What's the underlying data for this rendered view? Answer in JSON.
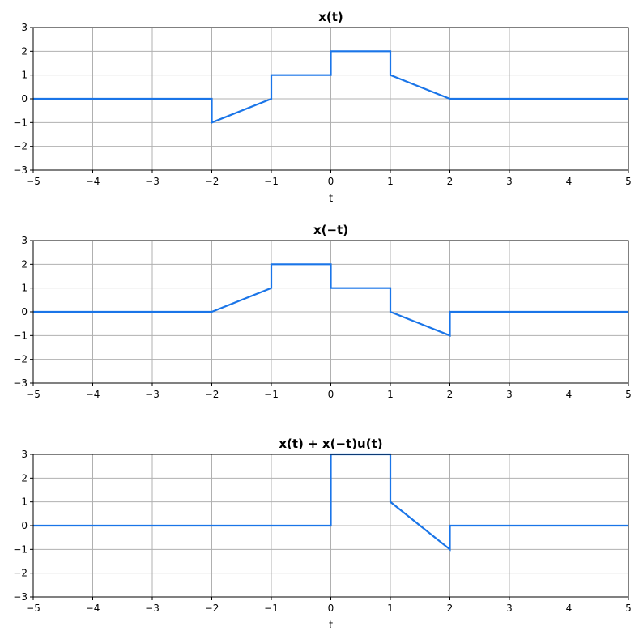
{
  "chart_data": [
    {
      "type": "line",
      "title": "x(t)",
      "xlabel": "t",
      "ylabel": "",
      "xlim": [
        -5,
        5
      ],
      "ylim": [
        -3,
        3
      ],
      "xticks": [
        -5,
        -4,
        -3,
        -2,
        -1,
        0,
        1,
        2,
        3,
        4,
        5
      ],
      "yticks": [
        -3,
        -2,
        -1,
        0,
        1,
        2,
        3
      ],
      "grid": true,
      "series": [
        {
          "color": "#1a75e8",
          "x": [
            -5,
            -2,
            -2,
            -1,
            -1,
            0,
            0,
            1,
            1,
            2,
            5
          ],
          "y": [
            0,
            0,
            -1,
            0,
            1,
            1,
            2,
            2,
            1,
            0,
            0
          ]
        }
      ]
    },
    {
      "type": "line",
      "title": "x(−t)",
      "xlabel": "",
      "ylabel": "",
      "xlim": [
        -5,
        5
      ],
      "ylim": [
        -3,
        3
      ],
      "xticks": [
        -5,
        -4,
        -3,
        -2,
        -1,
        0,
        1,
        2,
        3,
        4,
        5
      ],
      "yticks": [
        -3,
        -2,
        -1,
        0,
        1,
        2,
        3
      ],
      "grid": true,
      "series": [
        {
          "color": "#1a75e8",
          "x": [
            -5,
            -2,
            -1,
            -1,
            0,
            0,
            1,
            1,
            2,
            2,
            5
          ],
          "y": [
            0,
            0,
            1,
            2,
            2,
            1,
            1,
            0,
            -1,
            0,
            0
          ]
        }
      ]
    },
    {
      "type": "line",
      "title": "x(t) + x(−t)u(t)",
      "xlabel": "t",
      "ylabel": "",
      "xlim": [
        -5,
        5
      ],
      "ylim": [
        -3,
        3
      ],
      "xticks": [
        -5,
        -4,
        -3,
        -2,
        -1,
        0,
        1,
        2,
        3,
        4,
        5
      ],
      "yticks": [
        -3,
        -2,
        -1,
        0,
        1,
        2,
        3
      ],
      "grid": true,
      "series": [
        {
          "color": "#1a75e8",
          "x": [
            -5,
            0,
            0,
            1,
            1,
            2,
            2,
            5
          ],
          "y": [
            0,
            0,
            3,
            3,
            1,
            -1,
            0,
            0
          ]
        }
      ]
    }
  ]
}
